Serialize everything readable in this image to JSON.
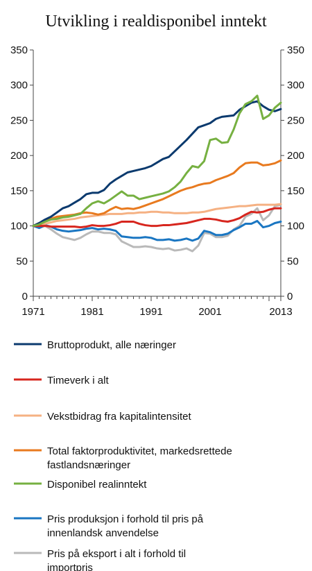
{
  "chart_data": {
    "type": "line",
    "title": "Utvikling i realdisponibel inntekt",
    "xlabel": "",
    "ylabel": "",
    "xlim": [
      1971,
      2013
    ],
    "ylim": [
      0,
      350
    ],
    "x_ticks": [
      "1971",
      "1981",
      "1991",
      "2001",
      "2013"
    ],
    "y_ticks": [
      0,
      50,
      100,
      150,
      200,
      250,
      300,
      350
    ],
    "grid": false,
    "legend_position": "bottom",
    "x": [
      1971,
      1972,
      1973,
      1974,
      1975,
      1976,
      1977,
      1978,
      1979,
      1980,
      1981,
      1982,
      1983,
      1984,
      1985,
      1986,
      1987,
      1988,
      1989,
      1990,
      1991,
      1992,
      1993,
      1994,
      1995,
      1996,
      1997,
      1998,
      1999,
      2000,
      2001,
      2002,
      2003,
      2004,
      2005,
      2006,
      2007,
      2008,
      2009,
      2010,
      2011,
      2012,
      2013
    ],
    "series": [
      {
        "name": "Bruttoprodukt, alle næringer",
        "color": "#0b3a6e",
        "values": [
          100,
          104,
          109,
          113,
          119,
          125,
          128,
          133,
          138,
          145,
          147,
          147,
          151,
          160,
          166,
          171,
          176,
          178,
          180,
          182,
          185,
          190,
          195,
          198,
          206,
          214,
          222,
          231,
          240,
          243,
          246,
          252,
          255,
          256,
          257,
          265,
          270,
          275,
          277,
          270,
          265,
          263,
          266
        ]
      },
      {
        "name": "Timeverk i alt",
        "color": "#d7261e",
        "values": [
          100,
          100,
          100,
          99,
          99,
          99,
          99,
          99,
          98,
          99,
          101,
          100,
          100,
          101,
          103,
          106,
          106,
          106,
          103,
          101,
          100,
          100,
          101,
          101,
          102,
          103,
          104,
          106,
          108,
          110,
          110,
          109,
          107,
          106,
          108,
          111,
          116,
          120,
          119,
          120,
          123,
          125,
          125
        ]
      },
      {
        "name": "Vekstbidrag fra kapitalintensitet",
        "color": "#f5b183",
        "values": [
          100,
          102,
          103,
          105,
          107,
          108,
          109,
          110,
          112,
          113,
          114,
          115,
          116,
          117,
          117,
          117,
          118,
          118,
          119,
          119,
          120,
          120,
          119,
          119,
          118,
          118,
          118,
          119,
          119,
          120,
          122,
          124,
          125,
          126,
          127,
          128,
          128,
          129,
          130,
          130,
          130,
          130,
          131
        ]
      },
      {
        "name": "Total faktorproduktivitet, markedsrettede fastlandsnæringer",
        "color": "#e87a1f",
        "values": [
          100,
          104,
          107,
          110,
          113,
          114,
          115,
          116,
          118,
          119,
          118,
          116,
          118,
          123,
          127,
          124,
          125,
          124,
          126,
          129,
          132,
          135,
          138,
          142,
          146,
          150,
          153,
          155,
          158,
          160,
          161,
          165,
          168,
          171,
          175,
          183,
          189,
          190,
          190,
          186,
          187,
          189,
          193
        ]
      },
      {
        "name": "Disponibel realinntekt",
        "color": "#76b041",
        "values": [
          100,
          102,
          106,
          109,
          110,
          112,
          113,
          115,
          117,
          125,
          132,
          135,
          132,
          137,
          143,
          149,
          143,
          143,
          138,
          140,
          142,
          144,
          146,
          149,
          155,
          163,
          175,
          185,
          183,
          192,
          222,
          224,
          218,
          219,
          237,
          260,
          273,
          277,
          285,
          252,
          257,
          268,
          275
        ]
      },
      {
        "name": "Pris produksjon i forhold til pris på innenlandsk anvendelse",
        "color": "#1a76c2",
        "values": [
          100,
          97,
          101,
          99,
          95,
          93,
          92,
          93,
          94,
          96,
          97,
          95,
          96,
          95,
          93,
          85,
          84,
          83,
          83,
          84,
          83,
          80,
          80,
          81,
          79,
          80,
          82,
          79,
          82,
          93,
          91,
          87,
          87,
          89,
          94,
          98,
          103,
          103,
          107,
          98,
          100,
          104,
          106
        ]
      },
      {
        "name": "Pris på eksport i alt i forhold til importpris",
        "color": "#b9b9b9",
        "values": [
          100,
          97,
          100,
          95,
          89,
          84,
          82,
          80,
          83,
          88,
          92,
          92,
          90,
          90,
          88,
          78,
          74,
          70,
          70,
          71,
          70,
          68,
          67,
          68,
          65,
          66,
          68,
          64,
          72,
          90,
          89,
          84,
          84,
          86,
          95,
          100,
          113,
          117,
          125,
          108,
          115,
          128,
          130
        ]
      }
    ]
  }
}
